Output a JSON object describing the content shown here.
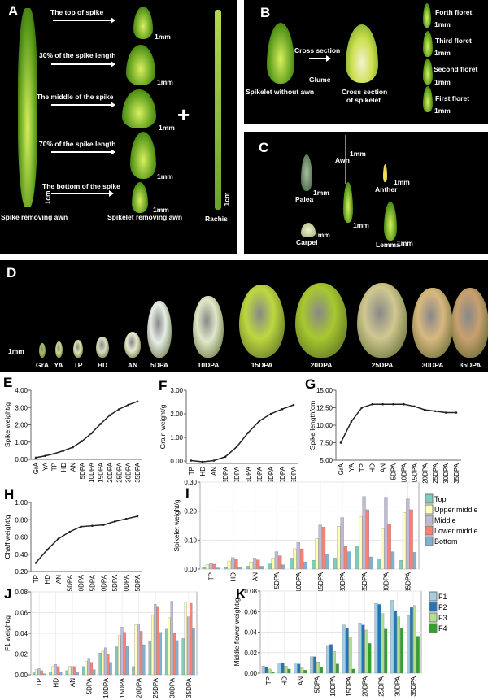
{
  "panel_a": {
    "letter": "A",
    "labels": [
      "The top of spike",
      "30% of the spike length",
      "The middle of the spike",
      "70% of the spike length",
      "The bottom of the spike"
    ],
    "scale_mm": "1mm",
    "scale_cm": "1cm",
    "spike_caption": "Spike removing awn",
    "spikelet_caption": "Spikelet removing awn",
    "rachis_caption": "Rachis",
    "plus": "+"
  },
  "panel_b": {
    "letter": "B",
    "cross_section": "Cross section",
    "glume": "Glume",
    "spikelet_caption": "Spikelet without awn",
    "cross_caption_1": "Cross section",
    "cross_caption_2": "of spikelet",
    "florets": [
      "Forth floret",
      "Third floret",
      "Second floret",
      "First floret"
    ],
    "scale_mm": "1mm"
  },
  "panel_c": {
    "letter": "C",
    "parts": [
      "Awn",
      "Palea",
      "Anther",
      "Carpel",
      "Lemma"
    ],
    "scale_mm": "1mm"
  },
  "panel_d": {
    "letter": "D",
    "scale_mm": "1mm",
    "stages": [
      "GrA",
      "YA",
      "TP",
      "HD",
      "AN",
      "5DPA",
      "10DPA",
      "15DPA",
      "20DPA",
      "25DPA",
      "30DPA",
      "35DPA"
    ]
  },
  "colors": {
    "top": "#7fcdbb",
    "upper_middle": "#ffffb3",
    "middle": "#bebada",
    "lower_middle": "#fb8072",
    "bottom": "#80b1d3",
    "f1": "#a6cee3",
    "f2": "#1f78b4",
    "f3": "#b2df8a",
    "f4": "#33a02c"
  },
  "chart_data": [
    {
      "id": "E",
      "letter": "E",
      "type": "line",
      "ylabel": "Spike weight/g",
      "ylim": [
        0,
        4
      ],
      "yticks": [
        "0.00",
        "1.00",
        "2.00",
        "3.00",
        "4.00"
      ],
      "categories": [
        "GrA",
        "YA",
        "TP",
        "HD",
        "AN",
        "5DPA",
        "10DPA",
        "15DPA",
        "20DPA",
        "25DPA",
        "30DPA",
        "35DPA"
      ],
      "values": [
        0.1,
        0.2,
        0.33,
        0.5,
        0.7,
        1.05,
        1.5,
        2.05,
        2.55,
        2.9,
        3.15,
        3.35
      ],
      "grid": false
    },
    {
      "id": "F",
      "letter": "F",
      "type": "line",
      "ylabel": "Grain weight/g",
      "ylim": [
        -0.1,
        3
      ],
      "yticks": [
        "0.00",
        "1.00",
        "2.00",
        "3.00"
      ],
      "categories": [
        "TP",
        "HD",
        "AN",
        "5DPA",
        "10DPA",
        "15DPA",
        "20DPA",
        "25DPA",
        "30DPA",
        "35DPA"
      ],
      "values": [
        0.02,
        -0.03,
        0.02,
        0.18,
        0.6,
        1.2,
        1.7,
        2.0,
        2.2,
        2.38
      ],
      "grid": false
    },
    {
      "id": "G",
      "letter": "G",
      "type": "line",
      "ylabel": "Spike length/cm",
      "ylim": [
        5,
        15
      ],
      "yticks": [
        "5.00",
        "7.50",
        "10.00",
        "12.50",
        "15.00"
      ],
      "categories": [
        "GrA",
        "YA",
        "TP",
        "HD",
        "AN",
        "5DPA",
        "10DPA",
        "15DPA",
        "20DPA",
        "25DPA",
        "30DPA",
        "35DPA"
      ],
      "values": [
        7.5,
        10.5,
        12.5,
        13.0,
        13.0,
        13.0,
        13.0,
        12.7,
        12.2,
        12.0,
        11.8,
        11.8
      ],
      "grid": false
    },
    {
      "id": "H",
      "letter": "H",
      "type": "line",
      "ylabel": "Chaff weight/g",
      "ylim": [
        0.2,
        1.0
      ],
      "yticks": [
        "0.20",
        "0.40",
        "0.60",
        "0.80",
        "1.00"
      ],
      "categories": [
        "TP",
        "HD",
        "AN",
        "5DPA",
        "10DPA",
        "15DPA",
        "20DPA",
        "25DPA",
        "30DPA",
        "35DPA"
      ],
      "values": [
        0.3,
        0.45,
        0.58,
        0.66,
        0.72,
        0.73,
        0.74,
        0.78,
        0.81,
        0.84
      ],
      "grid": false
    },
    {
      "id": "I",
      "letter": "I",
      "type": "bar",
      "ylabel": "Spikelet weight/g",
      "ylim": [
        0,
        0.3
      ],
      "yticks": [
        "0.00",
        "0.10",
        "0.20",
        "0.30"
      ],
      "grid": true,
      "legend": "right",
      "categories": [
        "TP",
        "HD",
        "AN",
        "5DPA",
        "10DPA",
        "15DPA",
        "20DPA",
        "25DPA",
        "30DPA",
        "35DPA"
      ],
      "series": [
        {
          "name": "Top",
          "color": "#7fcdbb",
          "values": [
            0.005,
            0.005,
            0.01,
            0.018,
            0.038,
            0.03,
            0.038,
            0.08,
            0.035,
            0.03
          ]
        },
        {
          "name": "Upper middle",
          "color": "#ffffb3",
          "values": [
            0.015,
            0.028,
            0.025,
            0.038,
            0.07,
            0.105,
            0.148,
            0.182,
            0.14,
            0.195
          ]
        },
        {
          "name": "Middle",
          "color": "#bebada",
          "values": [
            0.02,
            0.04,
            0.038,
            0.06,
            0.092,
            0.152,
            0.178,
            0.25,
            0.248,
            0.242
          ]
        },
        {
          "name": "Lower middle",
          "color": "#fb8072",
          "values": [
            0.017,
            0.035,
            0.032,
            0.046,
            0.07,
            0.145,
            0.078,
            0.205,
            0.155,
            0.205
          ]
        },
        {
          "name": "Bottom",
          "color": "#80b1d3",
          "values": [
            0.004,
            0.008,
            0.01,
            0.015,
            0.025,
            0.052,
            0.06,
            0.042,
            0.06,
            0.058
          ]
        }
      ]
    },
    {
      "id": "J",
      "letter": "J",
      "type": "bar",
      "ylabel": "F1 weight/g",
      "ylim": [
        0,
        0.08
      ],
      "yticks": [
        "0.00",
        "0.02",
        "0.04",
        "0.06",
        "0.08"
      ],
      "grid": true,
      "categories": [
        "TP",
        "HD",
        "AN",
        "5DPA",
        "10DPA",
        "15DPA",
        "20DPA",
        "25DPA",
        "30DPA",
        "35DPA"
      ],
      "series": [
        {
          "color": "#7fcdbb",
          "values": [
            0.002,
            0.003,
            0.004,
            0.008,
            0.021,
            0.027,
            0.008,
            0.032,
            0.044,
            0.035
          ]
        },
        {
          "color": "#ffffb3",
          "values": [
            0.005,
            0.008,
            0.008,
            0.013,
            0.023,
            0.038,
            0.048,
            0.058,
            0.055,
            0.07
          ]
        },
        {
          "color": "#bebada",
          "values": [
            0.006,
            0.01,
            0.008,
            0.016,
            0.026,
            0.046,
            0.049,
            0.068,
            0.071,
            0.056
          ]
        },
        {
          "color": "#fb8072",
          "values": [
            0.004,
            0.008,
            0.008,
            0.012,
            0.02,
            0.041,
            0.042,
            0.066,
            0.04,
            0.069
          ]
        },
        {
          "color": "#80b1d3",
          "values": [
            0.001,
            0.003,
            0.003,
            0.005,
            0.012,
            0.028,
            0.029,
            0.041,
            0.033,
            0.045
          ]
        }
      ]
    },
    {
      "id": "K",
      "letter": "K",
      "type": "bar",
      "ylabel": "Middle flower weight/g",
      "ylim": [
        0,
        0.08
      ],
      "yticks": [
        "0.00",
        "0.02",
        "0.04",
        "0.06",
        "0.08"
      ],
      "grid": true,
      "legend": "right",
      "categories": [
        "TP",
        "HD",
        "AN",
        "5DPA",
        "10DPA",
        "15DPA",
        "20DPA",
        "25DPA",
        "30DPA",
        "35DPA"
      ],
      "series": [
        {
          "name": "F1",
          "color": "#a6cee3",
          "values": [
            0.007,
            0.01,
            0.009,
            0.016,
            0.027,
            0.047,
            0.049,
            0.068,
            0.071,
            0.056
          ]
        },
        {
          "name": "F2",
          "color": "#1f78b4",
          "values": [
            0.006,
            0.01,
            0.009,
            0.016,
            0.028,
            0.044,
            0.047,
            0.067,
            0.061,
            0.064
          ]
        },
        {
          "name": "F3",
          "color": "#b2df8a",
          "values": [
            0.004,
            0.007,
            0.006,
            0.011,
            0.021,
            0.035,
            0.042,
            0.058,
            0.055,
            0.066
          ]
        },
        {
          "name": "F4",
          "color": "#33a02c",
          "values": [
            0.001,
            0.004,
            0.003,
            0.006,
            0.009,
            0.004,
            0.029,
            0.043,
            0.044,
            0.036
          ]
        }
      ]
    }
  ]
}
